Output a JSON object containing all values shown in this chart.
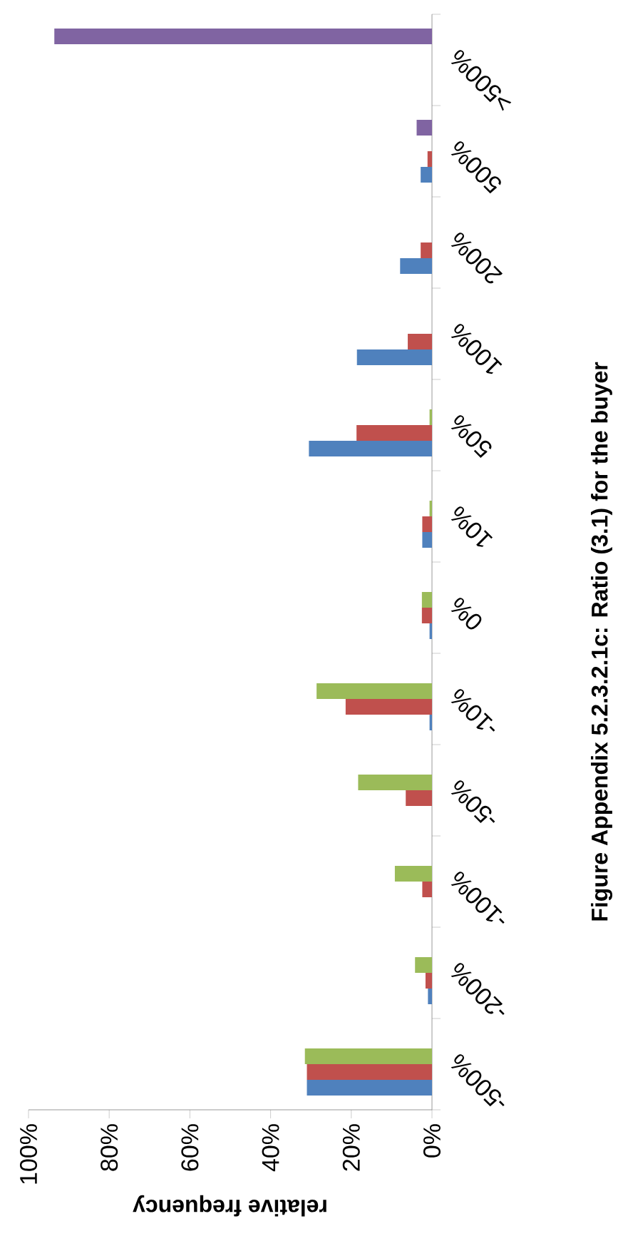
{
  "chart_data": {
    "type": "bar",
    "orientation": "horizontal",
    "title": "Figure Appendix 5.2.3.2.1c: Ratio (3.1) for the buyer",
    "xlabel": "relative frequency",
    "categories": [
      ">500%",
      "500%",
      "200%",
      "100%",
      "50%",
      "10%",
      "0%",
      "-10%",
      "-50%",
      "-100%",
      "-200%",
      "-500%"
    ],
    "series": [
      {
        "color": "#4f81bd",
        "values": [
          0,
          2.8,
          7.9,
          18.6,
          30.5,
          2.4,
          0.6,
          0.6,
          0,
          0,
          1,
          31
        ]
      },
      {
        "color": "#c0504d",
        "values": [
          0,
          1.1,
          2.8,
          6,
          18.7,
          2.4,
          2.5,
          21.4,
          6.5,
          2.4,
          1.6,
          31
        ]
      },
      {
        "color": "#9bbb59",
        "values": [
          0,
          0,
          0,
          0,
          0.6,
          0.6,
          2.5,
          28.6,
          18.3,
          9.2,
          4.2,
          31.5
        ]
      },
      {
        "color": "#8064a2",
        "values": [
          93.6,
          3.8,
          0,
          0,
          0,
          0,
          0,
          0,
          0,
          0,
          0,
          0
        ]
      }
    ],
    "xlim": [
      100,
      0
    ],
    "xticks": [
      {
        "value": 100,
        "label": "100%"
      },
      {
        "value": 80,
        "label": "80%"
      },
      {
        "value": 60,
        "label": "60%"
      },
      {
        "value": 40,
        "label": "40%"
      },
      {
        "value": 20,
        "label": "20%"
      },
      {
        "value": 0,
        "label": "0%"
      }
    ],
    "grid": false
  }
}
